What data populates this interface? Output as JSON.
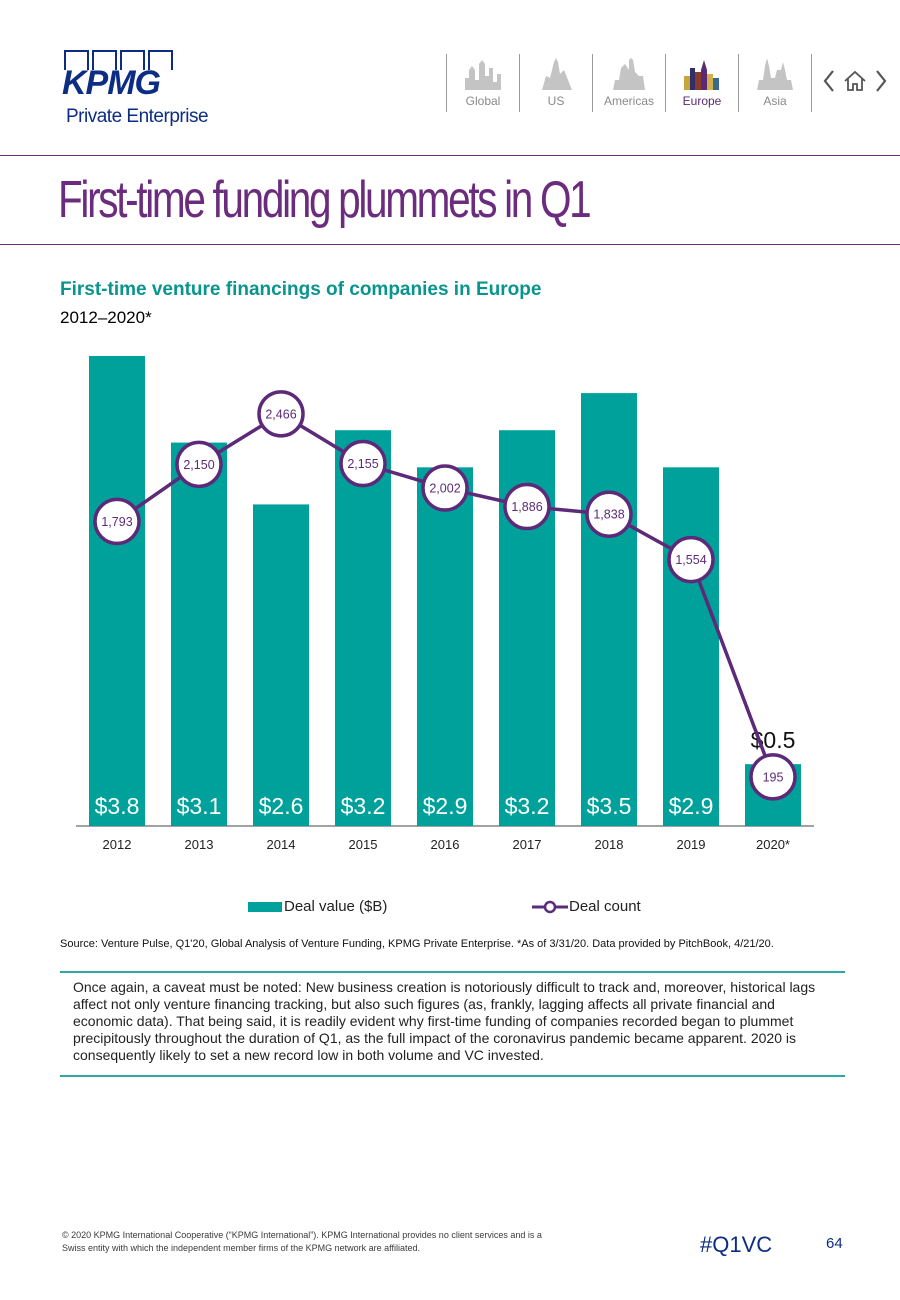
{
  "brand": {
    "logo_word": "KPMG",
    "logo_sub": "Private Enterprise",
    "color_primary": "#0c2d83",
    "color_accent": "#6b2c7e",
    "color_teal": "#08958e"
  },
  "nav": {
    "regions": [
      {
        "label": "Global",
        "active": false
      },
      {
        "label": "US",
        "active": false
      },
      {
        "label": "Americas",
        "active": false
      },
      {
        "label": "Europe",
        "active": true
      },
      {
        "label": "Asia",
        "active": false
      }
    ],
    "icons": [
      "chevron-left-icon",
      "home-icon",
      "chevron-right-icon"
    ]
  },
  "page_title": "First-time funding plummets in Q1",
  "chart_data": {
    "type": "bar",
    "title": "First-time venture financings of companies in Europe",
    "subtitle": "2012–2020*",
    "categories": [
      "2012",
      "2013",
      "2014",
      "2015",
      "2016",
      "2017",
      "2018",
      "2019",
      "2020*"
    ],
    "series": [
      {
        "name": "Deal value ($B)",
        "type": "bar",
        "color": "#00a19a",
        "values": [
          3.8,
          3.1,
          2.6,
          3.2,
          2.9,
          3.2,
          3.5,
          2.9,
          0.5
        ],
        "labels": [
          "$3.8",
          "$3.1",
          "$2.6",
          "$3.2",
          "$2.9",
          "$3.2",
          "$3.5",
          "$2.9",
          "$0.5"
        ]
      },
      {
        "name": "Deal count",
        "type": "line",
        "color": "#5d2a7a",
        "values": [
          1793,
          2150,
          2466,
          2155,
          2002,
          1886,
          1838,
          1554,
          195
        ],
        "labels": [
          "1,793",
          "2,150",
          "2,466",
          "2,155",
          "2,002",
          "1,886",
          "1,838",
          "1,554",
          "195"
        ]
      }
    ],
    "ylim_value": [
      0,
      3.8
    ],
    "ylim_count": [
      0,
      3000
    ],
    "grid": false,
    "legend": "bottom"
  },
  "source": "Source: Venture Pulse, Q1'20, Global Analysis of Venture Funding, KPMG Private Enterprise. *As of 3/31/20. Data provided by PitchBook, 4/21/20.",
  "note": "Once again, a caveat must be noted: New business creation is notoriously difficult to track and, moreover, historical lags affect not only venture financing tracking, but also such figures (as, frankly, lagging affects all private financial and economic data). That being said, it is readily evident why first-time funding of companies recorded began to plummet precipitously throughout the duration of Q1, as the full impact of the coronavirus pandemic became apparent. 2020 is consequently likely to set a new record low in both volume and VC invested.",
  "footer": {
    "copyright": "© 2020 KPMG International Cooperative (“KPMG International”). KPMG International provides no client services and is a Swiss entity with which the independent member firms of the KPMG network are affiliated.",
    "hashtag": "#Q1VC",
    "page_number": "64"
  }
}
